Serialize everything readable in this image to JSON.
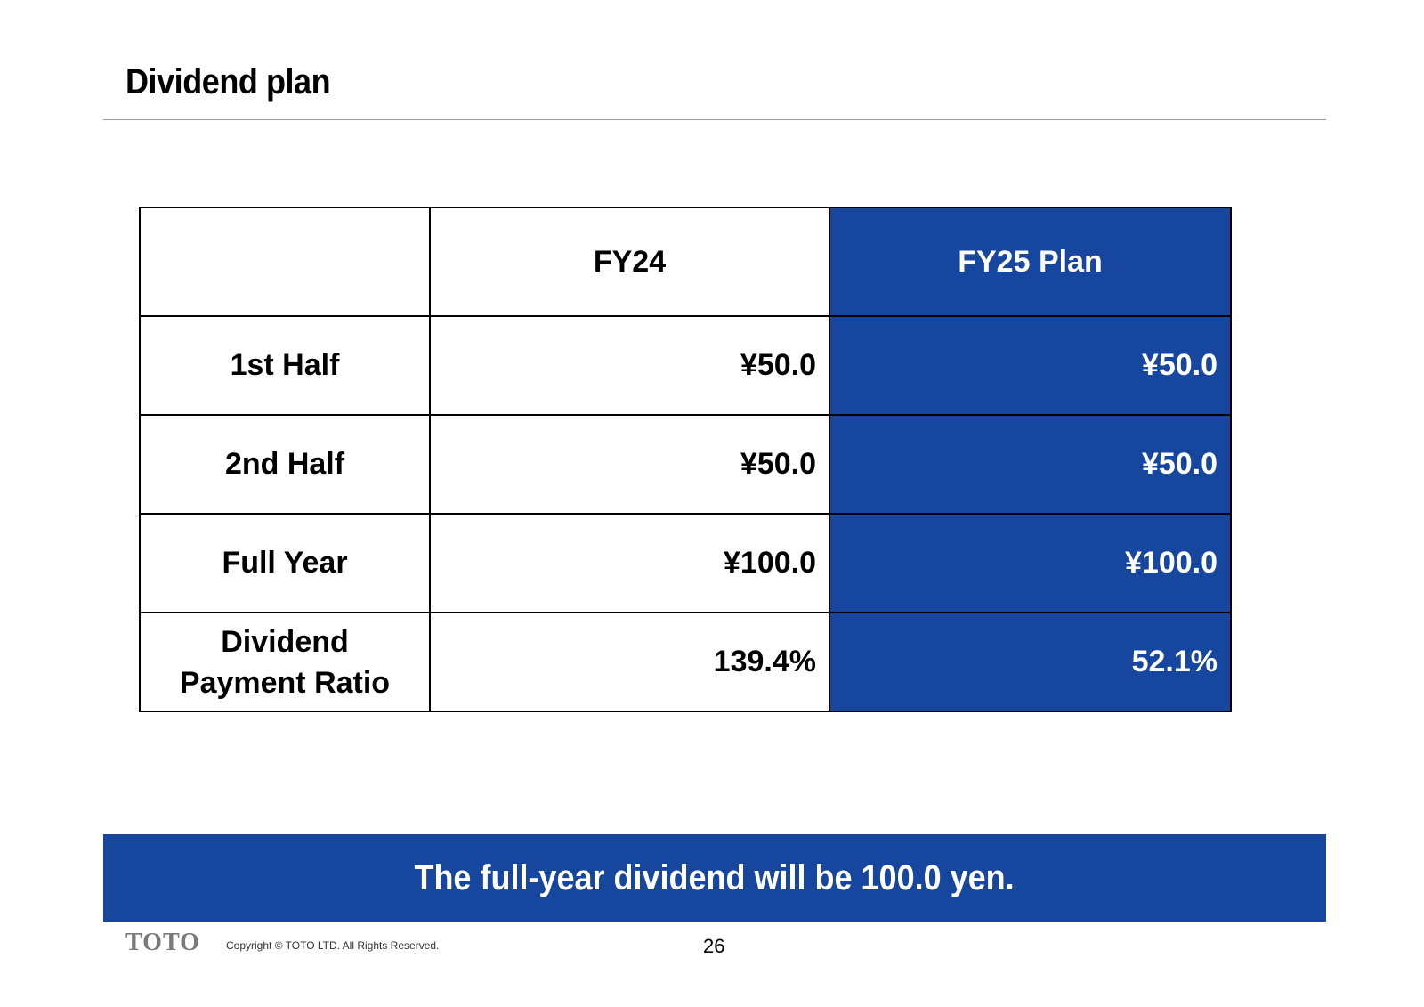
{
  "slide": {
    "title": "Dividend plan",
    "page_number": "26"
  },
  "table": {
    "headers": [
      "",
      "FY24",
      "FY25 Plan"
    ],
    "rows": [
      {
        "label": "1st Half",
        "fy24": "¥50.0",
        "fy25": "¥50.0"
      },
      {
        "label": "2nd Half",
        "fy24": "¥50.0",
        "fy25": "¥50.0"
      },
      {
        "label": "Full Year",
        "fy24": "¥100.0",
        "fy25": "¥100.0"
      },
      {
        "label_line1": "Dividend",
        "label_line2": "Payment Ratio",
        "fy24": "139.4%",
        "fy25": "52.1%"
      }
    ]
  },
  "banner": {
    "text": "The full-year dividend will be 100.0 yen."
  },
  "footer": {
    "logo": "TOTO",
    "copyright": "Copyright © TOTO LTD. All Rights Reserved."
  },
  "colors": {
    "accent_blue": "#17469e",
    "rule_gray": "#9a9a9a"
  }
}
